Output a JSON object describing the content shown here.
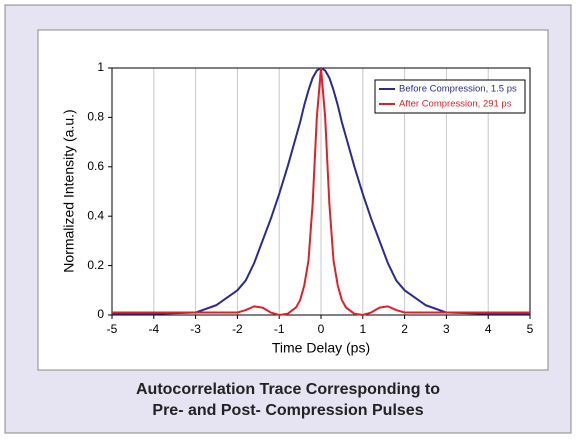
{
  "chart_data": {
    "type": "line",
    "title": [
      "Autocorrelation Trace Corresponding to",
      "Pre- and Post- Compression Pulses"
    ],
    "x_label": "Time Delay (ps)",
    "y_label": "Normalized Intensity (a.u.)",
    "x": [
      -5,
      -4,
      -3,
      -2.5,
      -2,
      -1.8,
      -1.6,
      -1.4,
      -1.2,
      -1,
      -0.8,
      -0.6,
      -0.5,
      -0.4,
      -0.3,
      -0.2,
      -0.1,
      0,
      0.1,
      0.2,
      0.3,
      0.4,
      0.5,
      0.6,
      0.8,
      1,
      1.2,
      1.4,
      1.6,
      1.8,
      2,
      2.5,
      3,
      4,
      5
    ],
    "series": [
      {
        "name": "Before Compression, 1.5 ps",
        "color": "#2b2b8f",
        "values": [
          0.005,
          0.005,
          0.01,
          0.04,
          0.1,
          0.14,
          0.21,
          0.3,
          0.39,
          0.49,
          0.6,
          0.72,
          0.78,
          0.85,
          0.91,
          0.96,
          0.99,
          1,
          0.99,
          0.96,
          0.91,
          0.85,
          0.78,
          0.72,
          0.6,
          0.49,
          0.39,
          0.3,
          0.21,
          0.14,
          0.1,
          0.04,
          0.01,
          0.005,
          0.005
        ]
      },
      {
        "name": "After Compression, 291 ps",
        "color": "#e02028",
        "values": [
          0.01,
          0.01,
          0.01,
          0.01,
          0.01,
          0.02,
          0.035,
          0.03,
          0.01,
          0,
          0.005,
          0.03,
          0.06,
          0.12,
          0.22,
          0.45,
          0.8,
          1,
          0.8,
          0.45,
          0.22,
          0.12,
          0.06,
          0.03,
          0.005,
          0,
          0.01,
          0.03,
          0.035,
          0.02,
          0.01,
          0.01,
          0.01,
          0.01,
          0.01
        ]
      }
    ],
    "xlim": [
      -5,
      5
    ],
    "xticks": [
      -5,
      -4,
      -3,
      -2,
      -1,
      0,
      1,
      2,
      3,
      4,
      5
    ],
    "ylim": [
      0,
      1
    ],
    "yticks": [
      0,
      0.2,
      0.4,
      0.6,
      0.8,
      1
    ],
    "grid": true,
    "legend": "upper right"
  }
}
